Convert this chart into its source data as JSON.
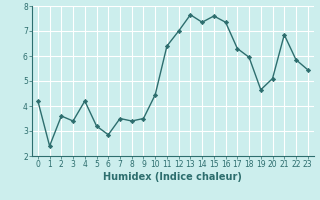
{
  "x": [
    0,
    1,
    2,
    3,
    4,
    5,
    6,
    7,
    8,
    9,
    10,
    11,
    12,
    13,
    14,
    15,
    16,
    17,
    18,
    19,
    20,
    21,
    22,
    23
  ],
  "y": [
    4.2,
    2.4,
    3.6,
    3.4,
    4.2,
    3.2,
    2.85,
    3.5,
    3.4,
    3.5,
    4.45,
    6.4,
    7.0,
    7.65,
    7.35,
    7.6,
    7.35,
    6.3,
    5.95,
    4.65,
    5.1,
    6.85,
    5.85,
    5.45
  ],
  "line_color": "#2d6e6e",
  "marker": "D",
  "marker_size": 2.2,
  "line_width": 1.0,
  "xlabel": "Humidex (Indice chaleur)",
  "xlabel_fontsize": 7,
  "xlabel_fontweight": "bold",
  "ylim": [
    2,
    8
  ],
  "xlim": [
    -0.5,
    23.5
  ],
  "yticks": [
    2,
    3,
    4,
    5,
    6,
    7,
    8
  ],
  "xticks": [
    0,
    1,
    2,
    3,
    4,
    5,
    6,
    7,
    8,
    9,
    10,
    11,
    12,
    13,
    14,
    15,
    16,
    17,
    18,
    19,
    20,
    21,
    22,
    23
  ],
  "bg_color": "#cceeed",
  "grid_color": "#ffffff",
  "tick_fontsize": 5.5,
  "spine_color": "#2d6e6e"
}
